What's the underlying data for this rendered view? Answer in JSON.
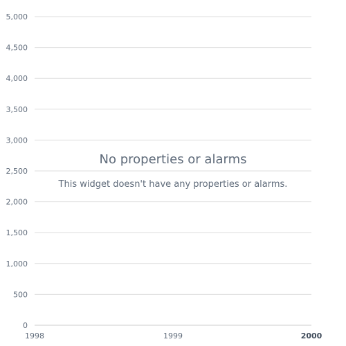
{
  "widget": {
    "empty_title": "No properties or alarms",
    "empty_message": "This widget doesn't have any properties or alarms."
  },
  "colors": {
    "gridline": "#dddddd",
    "axis_line": "#cccccc",
    "tick_text": "#5f6b7a",
    "tick_text_emphasis": "#414d5c"
  },
  "chart_data": {
    "type": "line",
    "series": [],
    "yticks": [
      "0",
      "500",
      "1,000",
      "1,500",
      "2,000",
      "2,500",
      "3,000",
      "3,500",
      "4,000",
      "4,500",
      "5,000"
    ],
    "ytick_values": [
      0,
      500,
      1000,
      1500,
      2000,
      2500,
      3000,
      3500,
      4000,
      4500,
      5000
    ],
    "ylim": [
      0,
      5000
    ],
    "xticks": [
      "1998",
      "1999",
      "2000"
    ],
    "xtick_values": [
      1998,
      1999,
      2000
    ],
    "xtick_bold": [
      false,
      false,
      true
    ],
    "xlim": [
      1998,
      2000
    ],
    "grid": true
  }
}
